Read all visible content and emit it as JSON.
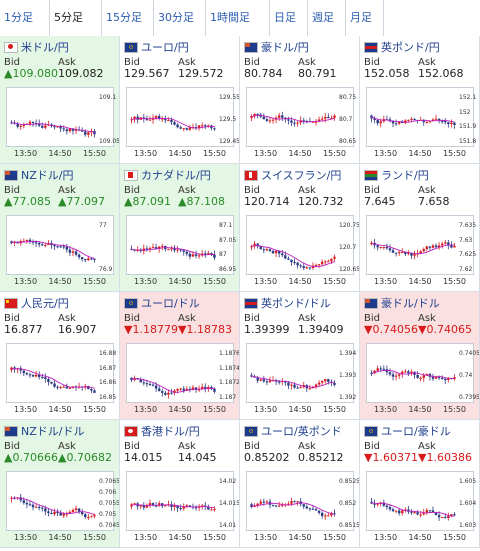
{
  "tabs": [
    {
      "label": "1分足"
    },
    {
      "label": "5分足"
    },
    {
      "label": "15分足"
    },
    {
      "label": "30分足"
    },
    {
      "label": "1時間足"
    },
    {
      "label": "日足"
    },
    {
      "label": "週足"
    },
    {
      "label": "月足"
    }
  ],
  "labels": {
    "bid": "Bid",
    "ask": "Ask"
  },
  "pairs": [
    {
      "name": "米ドル/円",
      "flag": "red",
      "state": "green",
      "bid": "▲109.080",
      "ask": "109.082",
      "bid_dir": "up",
      "ask_dir": "plain",
      "times": [
        "13:50",
        "14:50",
        "15:50"
      ],
      "ticks": [
        "109.1",
        "109.05"
      ]
    },
    {
      "name": "ユーロ/円",
      "flag": "eu",
      "state": "plain",
      "bid": "129.567",
      "ask": "129.572",
      "bid_dir": "plain",
      "ask_dir": "plain",
      "times": [
        "13:50",
        "14:50",
        "15:50"
      ],
      "ticks": [
        "129.55",
        "129.5",
        "129.45"
      ]
    },
    {
      "name": "豪ドル/円",
      "flag": "au",
      "state": "plain",
      "bid": "80.784",
      "ask": "80.791",
      "bid_dir": "plain",
      "ask_dir": "plain",
      "times": [
        "13:50",
        "14:50",
        "15:50"
      ],
      "ticks": [
        "80.75",
        "80.7",
        "80.65"
      ]
    },
    {
      "name": "英ポンド/円",
      "flag": "gb",
      "state": "plain",
      "bid": "152.058",
      "ask": "152.068",
      "bid_dir": "plain",
      "ask_dir": "plain",
      "times": [
        "13:50",
        "14:50",
        "15:50"
      ],
      "ticks": [
        "152.1",
        "152",
        "151.9",
        "151.8"
      ]
    },
    {
      "name": "NZドル/円",
      "flag": "nz",
      "state": "green",
      "bid": "▲77.085",
      "ask": "▲77.097",
      "bid_dir": "up",
      "ask_dir": "up",
      "times": [
        "13:50",
        "14:50",
        "15:50"
      ],
      "ticks": [
        "77",
        "76.9"
      ]
    },
    {
      "name": "カナダドル/円",
      "flag": "ca",
      "state": "green",
      "bid": "▲87.091",
      "ask": "▲87.108",
      "bid_dir": "up",
      "ask_dir": "up",
      "times": [
        "13:50",
        "14:50",
        "15:50"
      ],
      "ticks": [
        "87.1",
        "87.05",
        "87",
        "86.95"
      ]
    },
    {
      "name": "スイスフラン/円",
      "flag": "ch",
      "state": "plain",
      "bid": "120.714",
      "ask": "120.732",
      "bid_dir": "plain",
      "ask_dir": "plain",
      "times": [
        "13:50",
        "14:50",
        "15:50"
      ],
      "ticks": [
        "120.75",
        "120.7",
        "120.65"
      ]
    },
    {
      "name": "ランド/円",
      "flag": "za",
      "state": "plain",
      "bid": "7.645",
      "ask": "7.658",
      "bid_dir": "plain",
      "ask_dir": "plain",
      "times": [
        "13:50",
        "14:50",
        "15:50"
      ],
      "ticks": [
        "7.635",
        "7.63",
        "7.625",
        "7.62"
      ]
    },
    {
      "name": "人民元/円",
      "flag": "cn",
      "state": "plain",
      "bid": "16.877",
      "ask": "16.907",
      "bid_dir": "plain",
      "ask_dir": "plain",
      "times": [
        "13:50",
        "14:50",
        "15:50"
      ],
      "ticks": [
        "16.88",
        "16.87",
        "16.86",
        "16.85"
      ]
    },
    {
      "name": "ユーロ/ドル",
      "flag": "eu",
      "state": "pink",
      "bid": "▼1.18779",
      "ask": "▼1.18783",
      "bid_dir": "down",
      "ask_dir": "down",
      "times": [
        "13:50",
        "14:50",
        "15:50"
      ],
      "ticks": [
        "1.1876",
        "1.1874",
        "1.1872",
        "1.187"
      ]
    },
    {
      "name": "英ポンド/ドル",
      "flag": "gb",
      "state": "plain",
      "bid": "1.39399",
      "ask": "1.39409",
      "bid_dir": "plain",
      "ask_dir": "plain",
      "times": [
        "13:50",
        "14:50",
        "15:50"
      ],
      "ticks": [
        "1.394",
        "1.393",
        "1.392"
      ]
    },
    {
      "name": "豪ドル/ドル",
      "flag": "au",
      "state": "pink",
      "bid": "▼0.74056",
      "ask": "▼0.74065",
      "bid_dir": "down",
      "ask_dir": "down",
      "times": [
        "13:50",
        "14:50",
        "15:50"
      ],
      "ticks": [
        "0.7405",
        "0.74",
        "0.7395"
      ]
    },
    {
      "name": "NZドル/ドル",
      "flag": "nz",
      "state": "green",
      "bid": "▲0.70666",
      "ask": "▲0.70682",
      "bid_dir": "up",
      "ask_dir": "up",
      "times": [
        "13:50",
        "14:50",
        "15:50"
      ],
      "ticks": [
        "0.7065",
        "0.706",
        "0.7055",
        "0.705",
        "0.7045"
      ]
    },
    {
      "name": "香港ドル/円",
      "flag": "hk",
      "state": "plain",
      "bid": "14.015",
      "ask": "14.045",
      "bid_dir": "plain",
      "ask_dir": "plain",
      "times": [
        "13:50",
        "14:50",
        "15:50"
      ],
      "ticks": [
        "14.02",
        "14.015",
        "14.01"
      ]
    },
    {
      "name": "ユーロ/英ポンド",
      "flag": "eu",
      "state": "plain",
      "bid": "0.85202",
      "ask": "0.85212",
      "bid_dir": "plain",
      "ask_dir": "plain",
      "times": [
        "13:50",
        "14:50",
        "15:50"
      ],
      "ticks": [
        "0.8525",
        "0.852",
        "0.8515"
      ]
    },
    {
      "name": "ユーロ/豪ドル",
      "flag": "eu",
      "state": "plain",
      "bid": "▼1.60371",
      "ask": "▼1.60386",
      "bid_dir": "down",
      "ask_dir": "down",
      "times": [
        "13:50",
        "14:50",
        "15:50"
      ],
      "ticks": [
        "1.605",
        "1.604",
        "1.603"
      ]
    }
  ]
}
